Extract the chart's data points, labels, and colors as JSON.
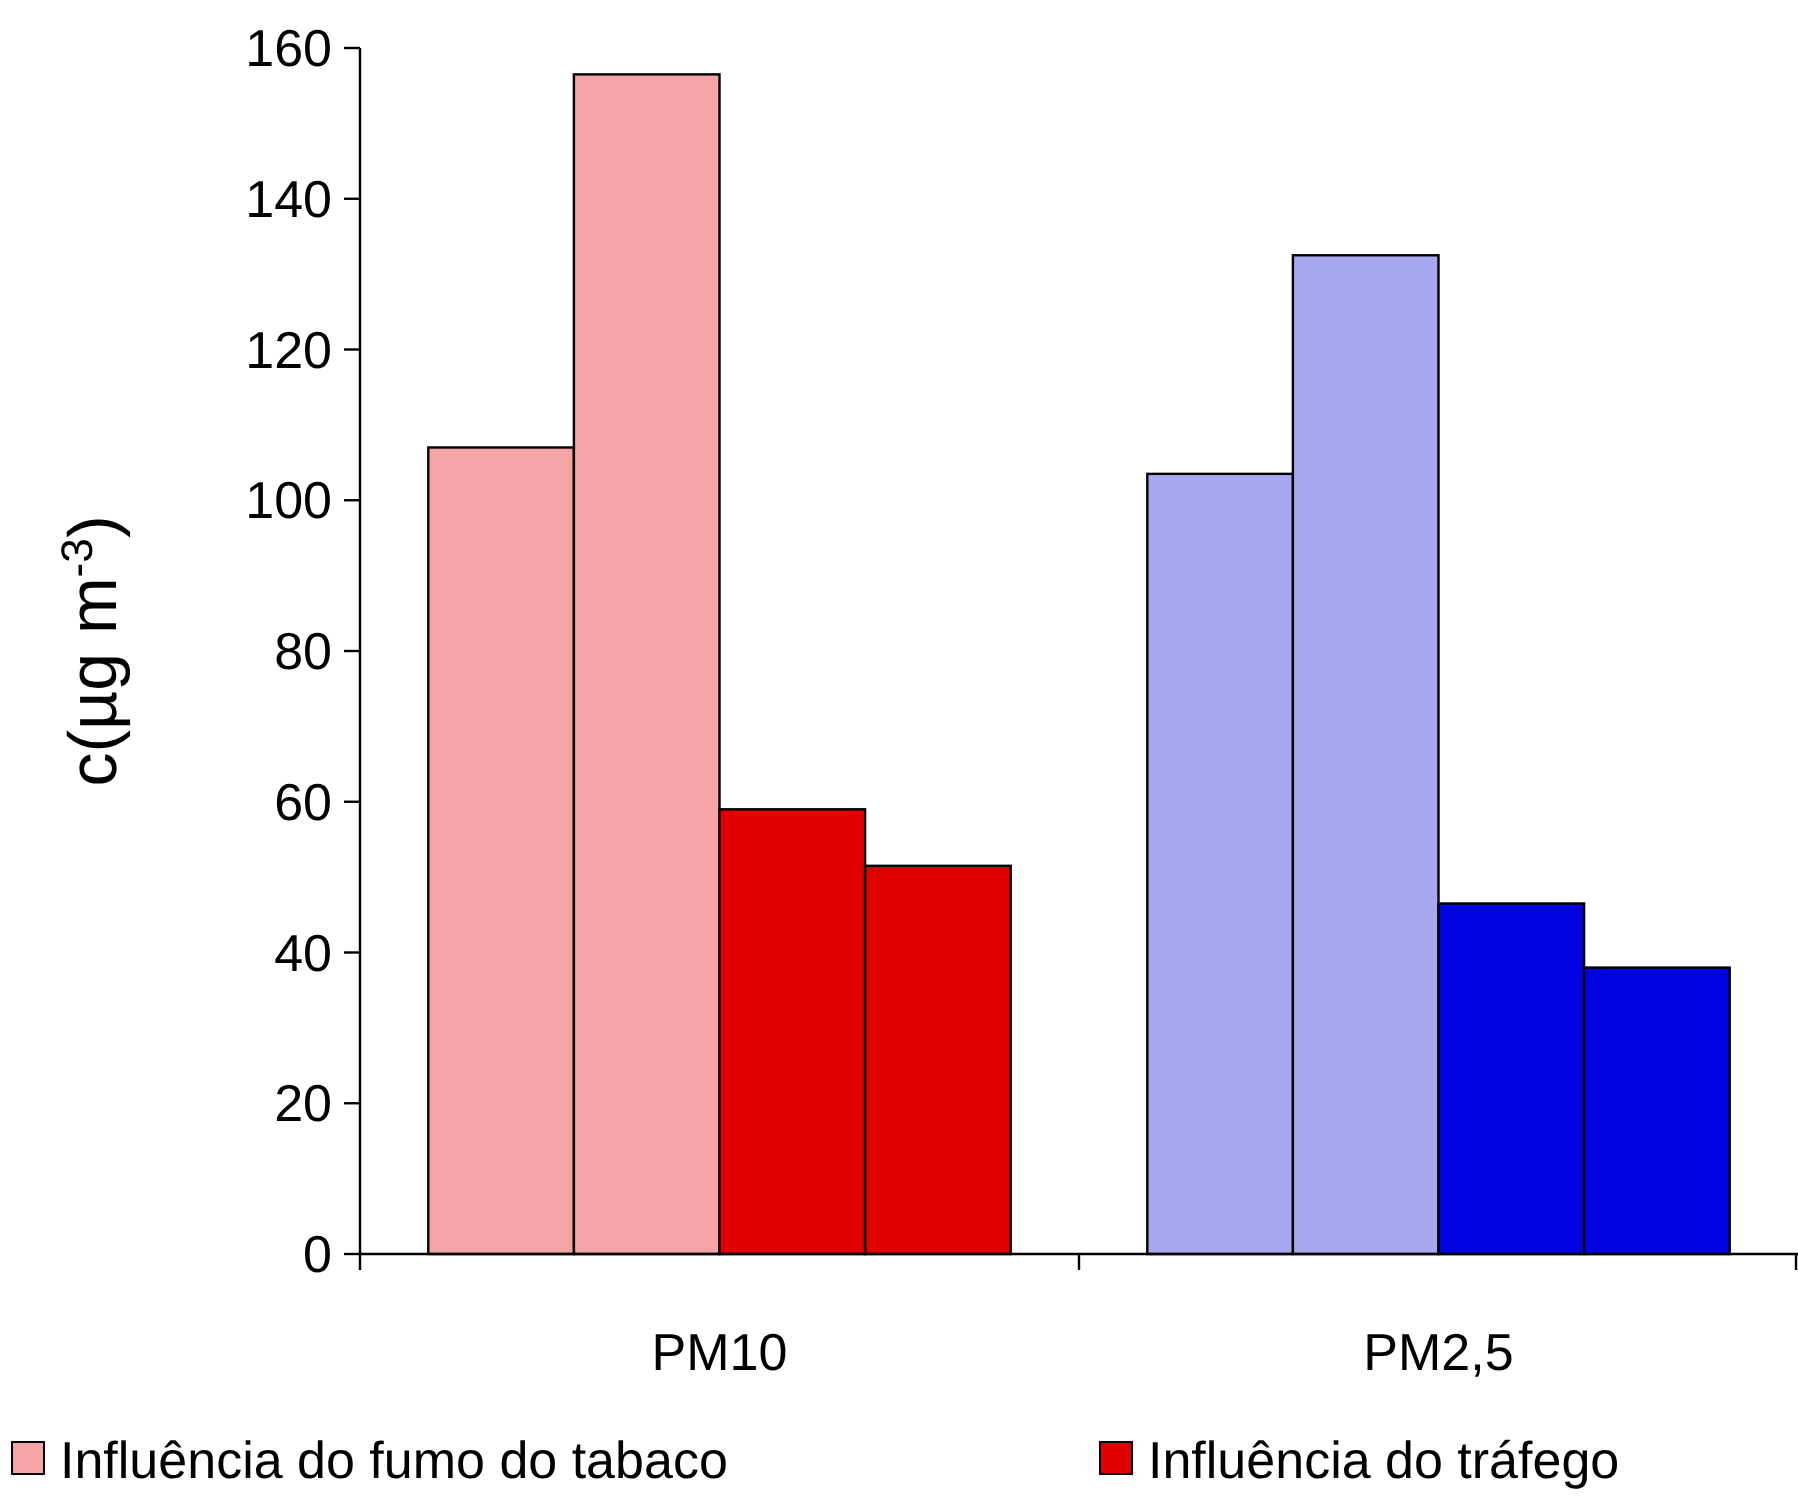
{
  "chart_data": {
    "type": "bar",
    "ylabel": "c(µg m$^{-3}$)",
    "categories": [
      "PM10",
      "PM2,5"
    ],
    "series": [
      {
        "name": "Influência do fumo do tabaco",
        "colors": [
          "#f4a4a4",
          "#a8a8f0"
        ],
        "values": [
          107,
          103.5
        ]
      },
      {
        "colors": [
          "#f4a4a4",
          "#a8a8f0"
        ],
        "values": [
          156.5,
          132.5
        ]
      },
      {
        "name": "Influência do tráfego",
        "colors": [
          "#e00000",
          "#0000e0"
        ],
        "values": [
          59,
          46.5
        ]
      },
      {
        "colors": [
          "#e00000",
          "#0000e0"
        ],
        "values": [
          51.5,
          38
        ]
      }
    ],
    "ylim": [
      0,
      160
    ],
    "yticks": [
      0,
      20,
      40,
      60,
      80,
      100,
      120,
      140,
      160
    ],
    "legend": "bottom",
    "grid": false
  }
}
